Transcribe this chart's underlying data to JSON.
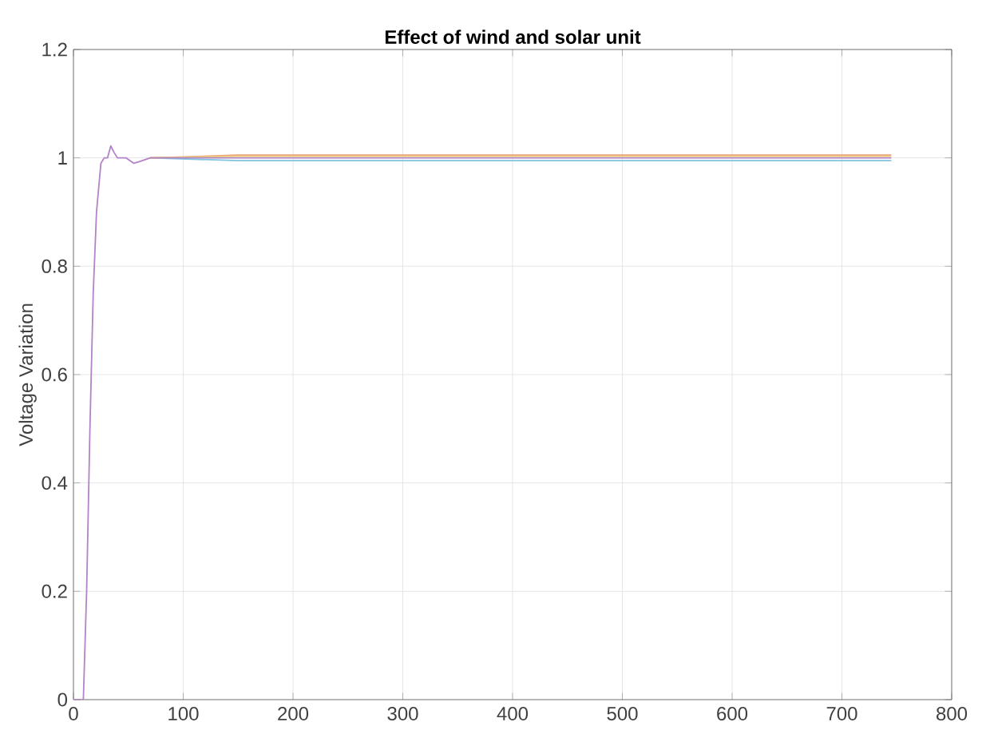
{
  "chart_data": {
    "type": "line",
    "title": "Effect of wind and solar unit",
    "ylabel": "Voltage Variation",
    "xlim": [
      0,
      800
    ],
    "xticks": [
      0,
      100,
      200,
      300,
      400,
      500,
      600,
      700,
      800
    ],
    "ylim": [
      0,
      1.2
    ],
    "yticks": [
      0,
      0.2,
      0.4,
      0.6,
      0.8,
      1,
      1.2
    ],
    "grid": true,
    "series": [
      {
        "color": "#7fc4e0",
        "x": [
          70,
          150,
          745
        ],
        "values": [
          1.0,
          0.995,
          0.995
        ]
      },
      {
        "color": "#e8a07a",
        "x": [
          70,
          150,
          745
        ],
        "values": [
          1.0,
          1.005,
          1.005
        ]
      },
      {
        "color": "#f0d27a",
        "x": [
          70,
          150,
          745
        ],
        "values": [
          1.0,
          1.003,
          1.003
        ]
      },
      {
        "color": "#b383c8",
        "x": [
          0,
          9,
          12,
          15,
          18,
          21,
          25,
          28,
          31,
          34,
          37,
          40,
          48,
          55,
          60,
          70,
          150,
          745
        ],
        "values": [
          0,
          0,
          0.2,
          0.5,
          0.75,
          0.9,
          0.99,
          1.0,
          1.0,
          1.022,
          1.01,
          1.0,
          1.0,
          0.99,
          0.993,
          1.0,
          1.0,
          1.0
        ]
      }
    ]
  }
}
